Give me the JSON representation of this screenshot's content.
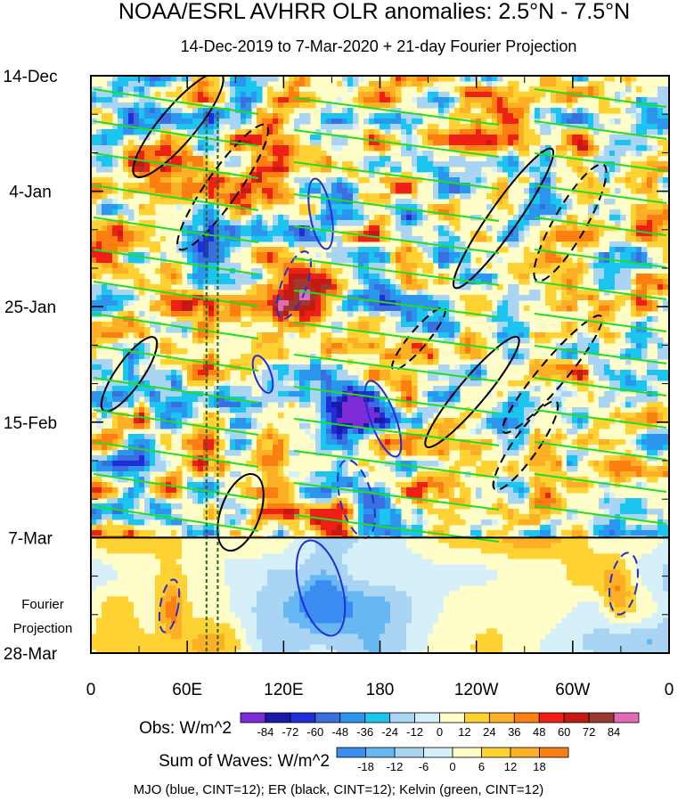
{
  "chart_data": {
    "type": "heatmap",
    "title": "NOAA/ESRL AVHRR OLR anomalies: 2.5°N - 7.5°N",
    "subtitle": "14-Dec-2019 to 7-Mar-2020 + 21-day Fourier Projection",
    "x_tick_labels": [
      "0",
      "60E",
      "120E",
      "180",
      "120W",
      "60W",
      "0"
    ],
    "x_ticks_deg": [
      0,
      60,
      120,
      180,
      240,
      300,
      360
    ],
    "xlim": [
      0,
      360
    ],
    "y_tick_labels": [
      "14-Dec",
      "4-Jan",
      "25-Jan",
      "15-Feb",
      "7-Mar",
      "28-Mar"
    ],
    "y_ticks_days": [
      0,
      21,
      42,
      63,
      84,
      105
    ],
    "ylim_days": [
      0,
      105
    ],
    "projection_start_day": 84,
    "projection_label": [
      "Fourier",
      "Projection"
    ],
    "reference_lines_deg": [
      72,
      79
    ],
    "obs_colorbar": {
      "label": "Obs: W/m^2",
      "levels": [
        "-84",
        "-72",
        "-60",
        "-48",
        "-36",
        "-24",
        "-12",
        "0",
        "12",
        "24",
        "36",
        "48",
        "60",
        "72",
        "84"
      ],
      "colors": [
        "#7d2ad8",
        "#1a1aa8",
        "#1f2ed6",
        "#3a6fe0",
        "#2a96ee",
        "#1cc4f0",
        "#a9d4f3",
        "#d6f0fa",
        "#fffdc8",
        "#ffd233",
        "#fdb025",
        "#fb7f11",
        "#ee1f14",
        "#c51a14",
        "#9a3a30",
        "#e36ab8"
      ]
    },
    "wave_colorbar": {
      "label": "Sum of Waves: W/m^2",
      "levels": [
        "-18",
        "-12",
        "-6",
        "0",
        "6",
        "12",
        "18"
      ],
      "colors": [
        "#3a8cf0",
        "#66b7f2",
        "#a9d4f3",
        "#d6f0fa",
        "#fffdc8",
        "#ffd233",
        "#fdb025",
        "#fb7f11"
      ]
    },
    "footer": "MJO (blue, CINT=12); ER (black, CINT=12); Kelvin (green, CINT=12)",
    "contour_series": [
      {
        "color": "#1f2ed6"
      },
      {
        "color": "#000000"
      },
      {
        "color": "#22dd22"
      }
    ]
  }
}
